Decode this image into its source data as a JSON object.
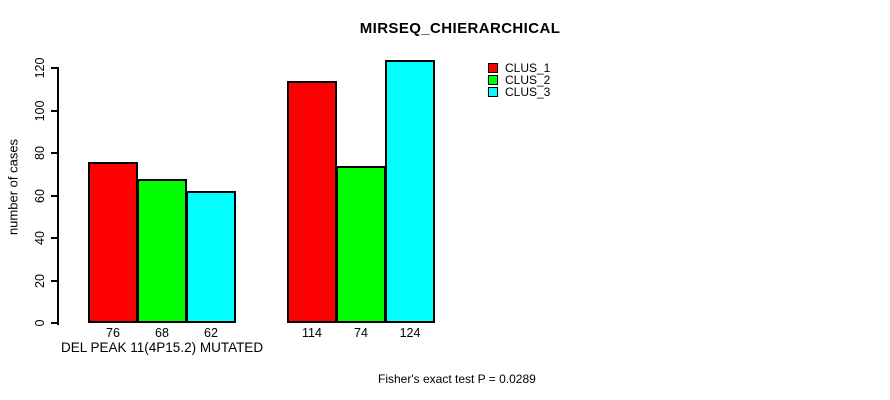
{
  "title": "MIRSEQ_CHIERARCHICAL",
  "chart_data": {
    "type": "bar",
    "title": "MIRSEQ_CHIERARCHICAL",
    "xlabel": "DEL PEAK 11(4P15.2) MUTATED",
    "ylabel": "number of cases",
    "ylim": [
      0,
      120
    ],
    "yticks": [
      0,
      20,
      40,
      60,
      80,
      100,
      120
    ],
    "grid": false,
    "legend_position": "top-right",
    "categories": [
      "DEL PEAK 11(4P15.2) MUTATED",
      ""
    ],
    "series": [
      {
        "name": "CLUS_1",
        "color": "#FF0000",
        "values": [
          76,
          114
        ]
      },
      {
        "name": "CLUS_2",
        "color": "#00FF00",
        "values": [
          68,
          74
        ]
      },
      {
        "name": "CLUS_3",
        "color": "#00FFFF",
        "values": [
          62,
          124
        ]
      }
    ],
    "bar_value_labels": [
      [
        76,
        68,
        62
      ],
      [
        114,
        74,
        124
      ]
    ],
    "annotation": "Fisher's exact test P = 0.0289"
  }
}
